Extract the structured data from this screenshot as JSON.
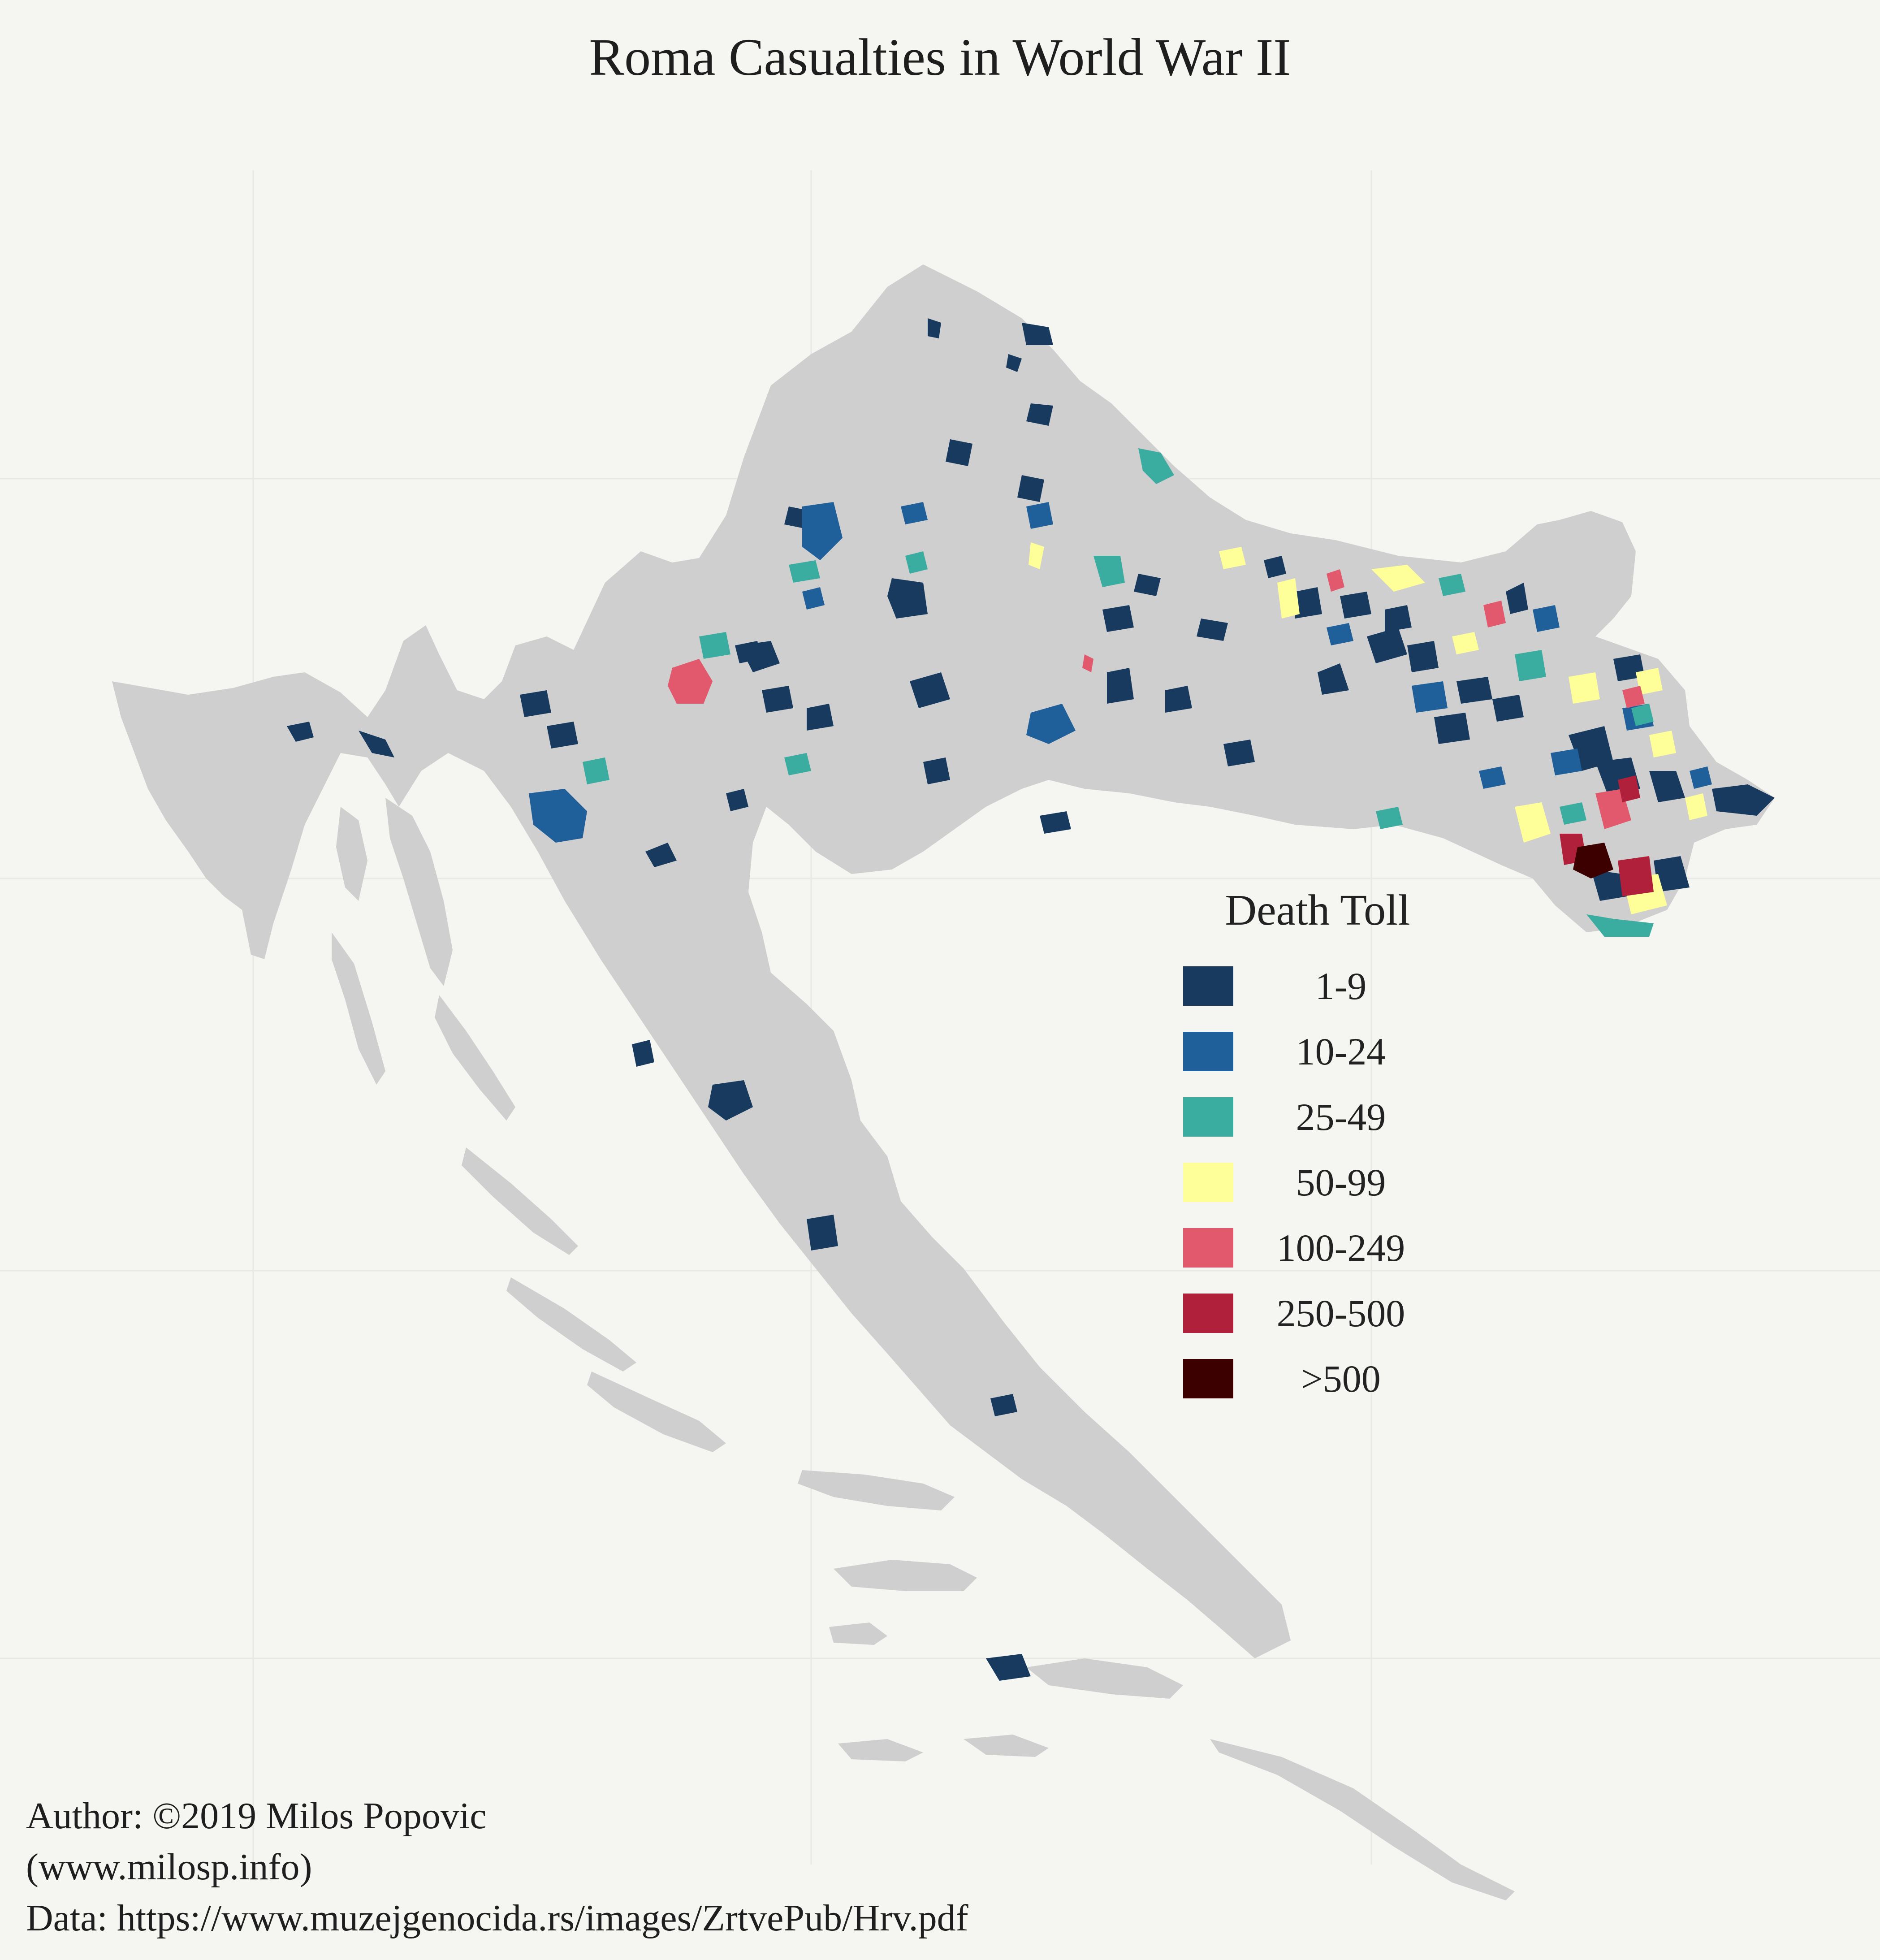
{
  "title": "Roma Casualties in World War II",
  "colors": {
    "background": "#f5f5f2",
    "land": "#cfcfcf",
    "grid": "#e8e8e4"
  },
  "legend": {
    "title": "Death Toll",
    "classes": [
      {
        "label": "1-9",
        "color": "#173a5e"
      },
      {
        "label": "10-24",
        "color": "#1f5f9a"
      },
      {
        "label": "25-49",
        "color": "#3aada0"
      },
      {
        "label": "50-99",
        "color": "#ffff99"
      },
      {
        "label": "100-249",
        "color": "#e2596e"
      },
      {
        "label": "250-500",
        "color": "#b0203a"
      },
      {
        "label": ">500",
        "color": "#3d0000"
      }
    ]
  },
  "caption": {
    "author": "Author: ©2019 Milos Popovic",
    "website": "(www.milosp.info)",
    "data_source": "Data: https://www.muzejgenocida.rs/images/ZrtvePub/Hrv.pdf"
  }
}
